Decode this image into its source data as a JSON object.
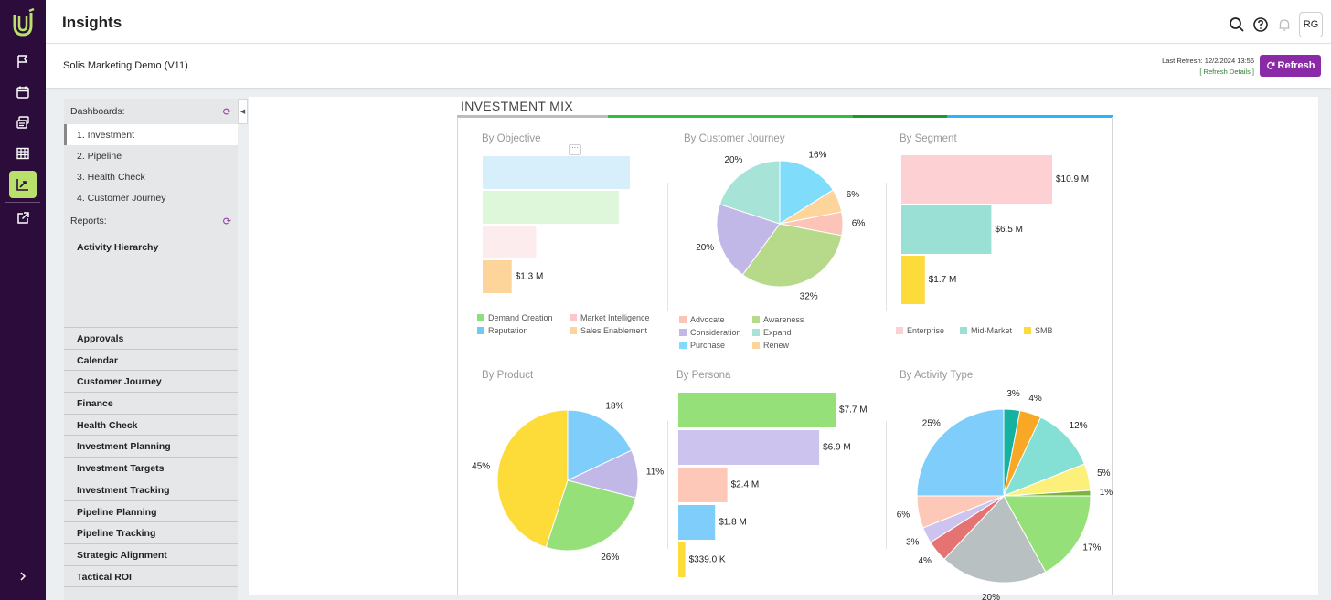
{
  "app": {
    "title": "Insights",
    "project": "Solis Marketing Demo (V11)",
    "user_initials": "RG",
    "last_refresh": "Last Refresh: 12/2/2024 13:56",
    "refresh_details": "[ Refresh Details ]",
    "refresh_button": "Refresh"
  },
  "colors": {
    "accent": "#8b2aa6",
    "rail": "#2b0c3a",
    "rail_active": "#b9e06a"
  },
  "sidebar": {
    "dashboards_label": "Dashboards:",
    "dashboards": [
      "1. Investment",
      "2. Pipeline",
      "3. Health Check",
      "4. Customer Journey"
    ],
    "reports_label": "Reports:",
    "reports": [
      "Activity Hierarchy"
    ],
    "folders": [
      "Approvals",
      "Calendar",
      "Customer Journey",
      "Finance",
      "Health Check",
      "Investment Planning",
      "Investment Targets",
      "Investment Tracking",
      "Pipeline Planning",
      "Pipeline Tracking",
      "Strategic Alignment",
      "Tactical ROI"
    ]
  },
  "dashboard": {
    "title": "INVESTMENT MIX",
    "more_label": "···"
  },
  "chart_data": [
    {
      "type": "bar",
      "orientation": "horizontal",
      "title": "By Objective",
      "categories": [
        "Demand Creation",
        "Reputation",
        "Market Intelligence",
        "Sales Enablement"
      ],
      "bars": [
        {
          "category": "Reputation",
          "value": 6.6,
          "color": "#d7eefb",
          "label": ""
        },
        {
          "category": "Demand Creation",
          "value": 6.1,
          "color": "#def7da",
          "label": ""
        },
        {
          "category": "Market Intelligence",
          "value": 2.4,
          "color": "#fdecee",
          "label": ""
        },
        {
          "category": "Sales Enablement",
          "value": 1.3,
          "color": "#fdd49a",
          "label": "$1.3 M"
        }
      ],
      "legend": [
        {
          "name": "Demand Creation",
          "color": "#8ddf7c"
        },
        {
          "name": "Market Intelligence",
          "color": "#fbc7cc"
        },
        {
          "name": "Reputation",
          "color": "#6fc8f6"
        },
        {
          "name": "Sales Enablement",
          "color": "#fdd49a"
        }
      ]
    },
    {
      "type": "pie",
      "title": "By Customer Journey",
      "slices": [
        {
          "name": "Purchase",
          "value": 16,
          "label": "16%",
          "color": "#7fdcfb"
        },
        {
          "name": "Renew",
          "value": 6,
          "label": "6%",
          "color": "#fdd49a"
        },
        {
          "name": "Advocate",
          "value": 6,
          "label": "6%",
          "color": "#fcc4b6"
        },
        {
          "name": "Awareness",
          "value": 32,
          "label": "32%",
          "color": "#b6d98a"
        },
        {
          "name": "Consideration",
          "value": 20,
          "label": "20%",
          "color": "#c1b8e8"
        },
        {
          "name": "Expand",
          "value": 20,
          "label": "20%",
          "color": "#a8e3d7"
        }
      ],
      "legend": [
        {
          "name": "Advocate",
          "color": "#fcc4b6"
        },
        {
          "name": "Awareness",
          "color": "#b6d98a"
        },
        {
          "name": "Consideration",
          "color": "#c1b8e8"
        },
        {
          "name": "Expand",
          "color": "#a8e3d7"
        },
        {
          "name": "Purchase",
          "color": "#7fdcfb"
        },
        {
          "name": "Renew",
          "color": "#fdd49a"
        }
      ]
    },
    {
      "type": "bar",
      "orientation": "horizontal",
      "title": "By Segment",
      "bars": [
        {
          "category": "Enterprise",
          "value": 10.9,
          "label": "$10.9 M",
          "color": "#fdd0d4"
        },
        {
          "category": "Mid-Market",
          "value": 6.5,
          "label": "$6.5 M",
          "color": "#9be0d4"
        },
        {
          "category": "SMB",
          "value": 1.7,
          "label": "$1.7 M",
          "color": "#fddb38"
        }
      ],
      "legend": [
        {
          "name": "Enterprise",
          "color": "#fdd0d4"
        },
        {
          "name": "Mid-Market",
          "color": "#9be0d4"
        },
        {
          "name": "SMB",
          "color": "#fddb38"
        }
      ]
    },
    {
      "type": "pie",
      "title": "By Product",
      "slices": [
        {
          "value": 18,
          "label": "18%",
          "color": "#7fcdfb"
        },
        {
          "value": 11,
          "label": "11%",
          "color": "#c1b8e8"
        },
        {
          "value": 26,
          "label": "26%",
          "color": "#96e07a"
        },
        {
          "value": 45,
          "label": "45%",
          "color": "#fddb38"
        }
      ]
    },
    {
      "type": "bar",
      "orientation": "horizontal",
      "title": "By Persona",
      "bars": [
        {
          "value": 7.7,
          "label": "$7.7 M",
          "color": "#96e07a"
        },
        {
          "value": 6.9,
          "label": "$6.9 M",
          "color": "#ccc4ef"
        },
        {
          "value": 2.4,
          "label": "$2.4 M",
          "color": "#fdc8b8"
        },
        {
          "value": 1.8,
          "label": "$1.8 M",
          "color": "#7fcdfb"
        },
        {
          "value": 0.339,
          "label": "$339.0 K",
          "color": "#fddb38"
        }
      ]
    },
    {
      "type": "pie",
      "title": "By Activity Type",
      "slices": [
        {
          "value": 3,
          "label": "3%",
          "color": "#16b1a1"
        },
        {
          "value": 4,
          "label": "4%",
          "color": "#f9a825"
        },
        {
          "value": 12,
          "label": "12%",
          "color": "#84e0d4"
        },
        {
          "value": 5,
          "label": "5%",
          "color": "#fdf07a"
        },
        {
          "value": 1,
          "label": "1%",
          "color": "#7cb342"
        },
        {
          "value": 17,
          "label": "17%",
          "color": "#96e07a"
        },
        {
          "value": 20,
          "label": "20%",
          "color": "#b9c0c2"
        },
        {
          "value": 4,
          "label": "4%",
          "color": "#e57373"
        },
        {
          "value": 3,
          "label": "3%",
          "color": "#ccc4ef"
        },
        {
          "value": 6,
          "label": "6%",
          "color": "#fdc8b8"
        },
        {
          "value": 25,
          "label": "25%",
          "color": "#7fcdfb"
        }
      ]
    }
  ]
}
